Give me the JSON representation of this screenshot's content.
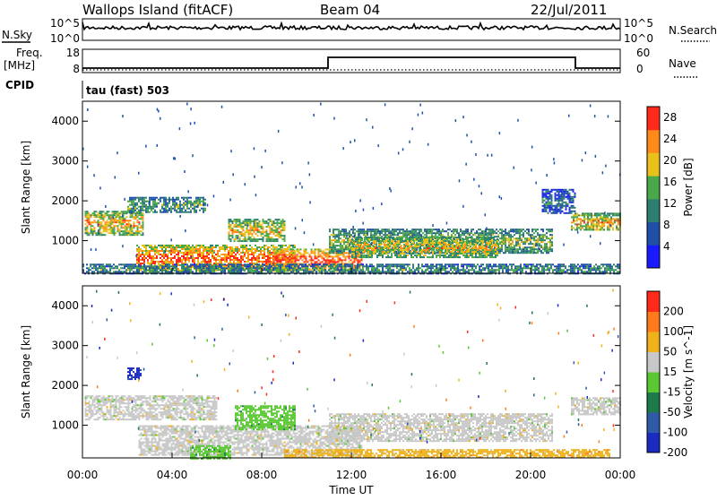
{
  "header": {
    "station": "Wallops Island (fitACF)",
    "beam": "Beam 04",
    "date": "22/Jul/2011"
  },
  "strip": {
    "left_top_label": "N.Sky",
    "left_freq_label_1": "Freq.",
    "left_freq_label_2": "[MHz]",
    "left_cpid_label": "CPID",
    "right_top_label": "N.Search",
    "right_nave_label": "Nave",
    "noise_ticks": [
      "10^5",
      "10^0"
    ],
    "freq_ticks": [
      "18",
      "8"
    ],
    "nave_ticks": [
      "60",
      "0"
    ],
    "cpid_text": "tau (fast) 503"
  },
  "chart_data": [
    {
      "type": "heatmap",
      "quantity": "Power",
      "colorbar_label": "Power [dB]",
      "colorbar_ticks": [
        "28",
        "24",
        "20",
        "16",
        "12",
        "8",
        "4"
      ],
      "colorbar_range": [
        0,
        30
      ],
      "colorbar_colors": [
        "#1a1aff",
        "#1f4fa8",
        "#2e7f6f",
        "#4aa84a",
        "#e8c21a",
        "#ff8a1a",
        "#ff2a1a"
      ],
      "ylabel": "Slant Range [km]",
      "y_ticks": [
        "4000",
        "3000",
        "2000",
        "1000"
      ],
      "ylim": [
        180,
        4500
      ],
      "xlim_hours": [
        0,
        24
      ],
      "regions": [
        {
          "t0": 0.1,
          "t1": 2.7,
          "r0": 1150,
          "r1": 1750,
          "level": 0.75
        },
        {
          "t0": 2.0,
          "t1": 5.5,
          "r0": 1700,
          "r1": 2100,
          "level": 0.45
        },
        {
          "t0": 2.4,
          "t1": 9.5,
          "r0": 250,
          "r1": 900,
          "level": 0.9
        },
        {
          "t0": 6.5,
          "t1": 9.0,
          "r0": 1000,
          "r1": 1550,
          "level": 0.7
        },
        {
          "t0": 8.5,
          "t1": 12.5,
          "r0": 250,
          "r1": 800,
          "level": 0.95
        },
        {
          "t0": 11.0,
          "t1": 21.0,
          "r0": 700,
          "r1": 1300,
          "level": 0.55
        },
        {
          "t0": 12.0,
          "t1": 18.5,
          "r0": 600,
          "r1": 1100,
          "level": 0.7
        },
        {
          "t0": 21.8,
          "t1": 24.0,
          "r0": 1250,
          "r1": 1700,
          "level": 0.75
        },
        {
          "t0": 20.5,
          "t1": 22.0,
          "r0": 1700,
          "r1": 2300,
          "level": 0.3
        },
        {
          "t0": 0.0,
          "t1": 24.0,
          "r0": 180,
          "r1": 420,
          "level": 0.4
        }
      ]
    },
    {
      "type": "heatmap",
      "quantity": "Velocity",
      "colorbar_label": "Velocity [m s^-1]",
      "colorbar_ticks": [
        "200",
        "100",
        "50",
        "15",
        "-15",
        "-50",
        "-100",
        "-200"
      ],
      "colorbar_colors": [
        "#1a2cc0",
        "#2e5aa8",
        "#1f7a4a",
        "#5ac832",
        "#c8c8c8",
        "#f0b21a",
        "#ff7a1a",
        "#ff2a1a"
      ],
      "ylabel": "Slant Range [km]",
      "y_ticks": [
        "4000",
        "3000",
        "2000",
        "1000"
      ],
      "ylim": [
        180,
        4500
      ],
      "xlabel": "Time UT",
      "x_ticks": [
        "00:00",
        "04:00",
        "08:00",
        "12:00",
        "16:00",
        "20:00",
        "00:00"
      ],
      "xlim_hours": [
        0,
        24
      ],
      "regions": [
        {
          "t0": 0.1,
          "t1": 6.0,
          "r0": 1150,
          "r1": 1750,
          "class": 4
        },
        {
          "t0": 2.5,
          "t1": 12.5,
          "r0": 250,
          "r1": 1000,
          "class": 4
        },
        {
          "t0": 6.8,
          "t1": 9.5,
          "r0": 900,
          "r1": 1500,
          "class": 3
        },
        {
          "t0": 11.0,
          "t1": 21.0,
          "r0": 600,
          "r1": 1300,
          "class": 4
        },
        {
          "t0": 21.8,
          "t1": 24.0,
          "r0": 1250,
          "r1": 1700,
          "class": 4
        },
        {
          "t0": 2.0,
          "t1": 2.6,
          "r0": 2150,
          "r1": 2450,
          "class": 0
        },
        {
          "t0": 4.8,
          "t1": 6.6,
          "r0": 180,
          "r1": 500,
          "class": 3
        },
        {
          "t0": 9.0,
          "t1": 23.5,
          "r0": 180,
          "r1": 400,
          "class": 5
        }
      ]
    }
  ]
}
